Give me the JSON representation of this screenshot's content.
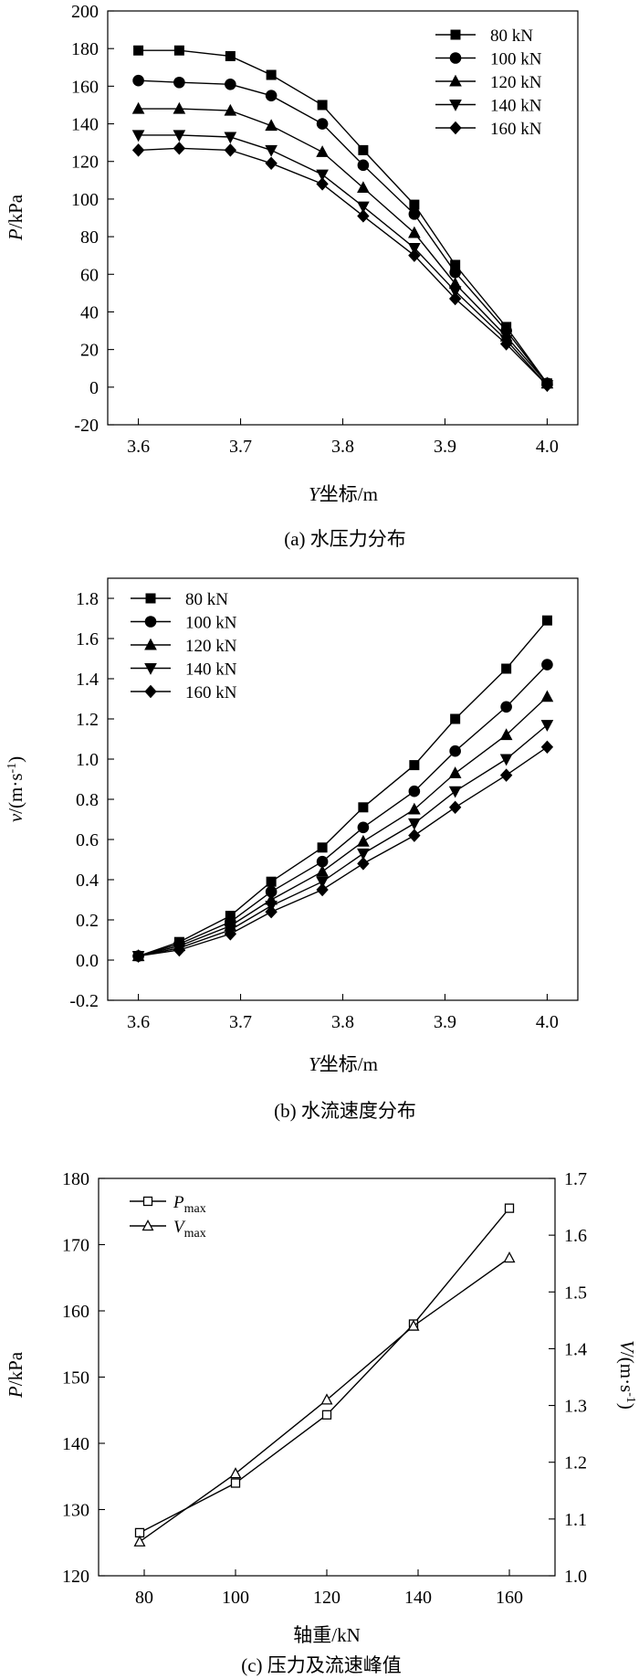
{
  "chart_data": [
    {
      "id": "a",
      "type": "line",
      "caption": "(a) 水压力分布",
      "xlabel_italic": "Y",
      "xlabel_rest": "坐标/m",
      "ylabel_italic": "P",
      "ylabel_rest": "/kPa",
      "xlim": [
        3.57,
        4.03
      ],
      "ylim": [
        -20,
        200
      ],
      "xticks": [
        "3.6",
        "3.7",
        "3.8",
        "3.9",
        "4.0"
      ],
      "yticks": [
        "-20",
        "0",
        "20",
        "40",
        "60",
        "80",
        "100",
        "120",
        "140",
        "160",
        "180",
        "200"
      ],
      "legend_position": "top-right",
      "x": [
        3.6,
        3.64,
        3.69,
        3.73,
        3.78,
        3.82,
        3.87,
        3.91,
        3.96,
        4.0
      ],
      "series": [
        {
          "name": "80 kN",
          "marker": "square",
          "values": [
            179,
            179,
            176,
            166,
            150,
            126,
            97,
            65,
            32,
            2
          ]
        },
        {
          "name": "100 kN",
          "marker": "circle",
          "values": [
            163,
            162,
            161,
            155,
            140,
            118,
            92,
            61,
            30,
            2
          ]
        },
        {
          "name": "120 kN",
          "marker": "triangle-up",
          "values": [
            148,
            148,
            147,
            139,
            125,
            106,
            82,
            55,
            27,
            2
          ]
        },
        {
          "name": "140 kN",
          "marker": "triangle-down",
          "values": [
            134,
            134,
            133,
            126,
            113,
            96,
            74,
            51,
            25,
            1
          ]
        },
        {
          "name": "160 kN",
          "marker": "diamond",
          "values": [
            126,
            127,
            126,
            119,
            108,
            91,
            70,
            47,
            23,
            1
          ]
        }
      ]
    },
    {
      "id": "b",
      "type": "line",
      "caption": "(b) 水流速度分布",
      "xlabel_italic": "Y",
      "xlabel_rest": "坐标/m",
      "ylabel_italic": "v",
      "ylabel_rest": "/(m·s",
      "ylabel_sup": "-1",
      "ylabel_close": ")",
      "xlim": [
        3.57,
        4.03
      ],
      "ylim": [
        -0.2,
        1.9
      ],
      "xticks": [
        "3.6",
        "3.7",
        "3.8",
        "3.9",
        "4.0"
      ],
      "yticks": [
        "-0.2",
        "0.0",
        "0.2",
        "0.4",
        "0.6",
        "0.8",
        "1.0",
        "1.2",
        "1.4",
        "1.6",
        "1.8"
      ],
      "legend_position": "top-left",
      "x": [
        3.6,
        3.64,
        3.69,
        3.73,
        3.78,
        3.82,
        3.87,
        3.91,
        3.96,
        4.0
      ],
      "series": [
        {
          "name": "80 kN",
          "marker": "square",
          "values": [
            0.02,
            0.09,
            0.22,
            0.39,
            0.56,
            0.76,
            0.97,
            1.2,
            1.45,
            1.69
          ]
        },
        {
          "name": "100 kN",
          "marker": "circle",
          "values": [
            0.02,
            0.08,
            0.19,
            0.34,
            0.49,
            0.66,
            0.84,
            1.04,
            1.26,
            1.47
          ]
        },
        {
          "name": "120 kN",
          "marker": "triangle-up",
          "values": [
            0.02,
            0.07,
            0.17,
            0.3,
            0.44,
            0.59,
            0.75,
            0.93,
            1.12,
            1.31
          ]
        },
        {
          "name": "140 kN",
          "marker": "triangle-down",
          "values": [
            0.02,
            0.06,
            0.15,
            0.27,
            0.39,
            0.53,
            0.68,
            0.84,
            1.0,
            1.17
          ]
        },
        {
          "name": "160 kN",
          "marker": "diamond",
          "values": [
            0.02,
            0.05,
            0.13,
            0.24,
            0.35,
            0.48,
            0.62,
            0.76,
            0.92,
            1.06
          ]
        }
      ]
    },
    {
      "id": "c",
      "type": "line",
      "caption": "(c) 压力及流速峰值",
      "xlabel": "轴重/kN",
      "ylabel_left_italic": "P",
      "ylabel_left_rest": "/kPa",
      "ylabel_right_italic": "V",
      "ylabel_right_rest": "/(m·s",
      "ylabel_right_sup": "-1",
      "ylabel_right_close": ")",
      "xlim": [
        70,
        170
      ],
      "ylim_left": [
        120,
        180
      ],
      "ylim_right": [
        1.0,
        1.7
      ],
      "xticks": [
        "80",
        "100",
        "120",
        "140",
        "160"
      ],
      "yticks_left": [
        "120",
        "130",
        "140",
        "150",
        "160",
        "170",
        "180"
      ],
      "yticks_right": [
        "1.0",
        "1.1",
        "1.2",
        "1.3",
        "1.4",
        "1.5",
        "1.6",
        "1.7"
      ],
      "legend_position": "top-left",
      "series": [
        {
          "name_italic": "P",
          "name_sub": "max",
          "marker": "square-open",
          "axis": "left",
          "x": [
            79,
            100,
            120,
            139,
            160
          ],
          "values": [
            126.5,
            134,
            144.3,
            158,
            175.5
          ]
        },
        {
          "name_italic": "V",
          "name_sub": "max",
          "marker": "triangle-open",
          "axis": "right",
          "x": [
            79,
            100,
            120,
            139,
            160
          ],
          "values": [
            1.06,
            1.18,
            1.31,
            1.44,
            1.56
          ]
        }
      ]
    }
  ]
}
